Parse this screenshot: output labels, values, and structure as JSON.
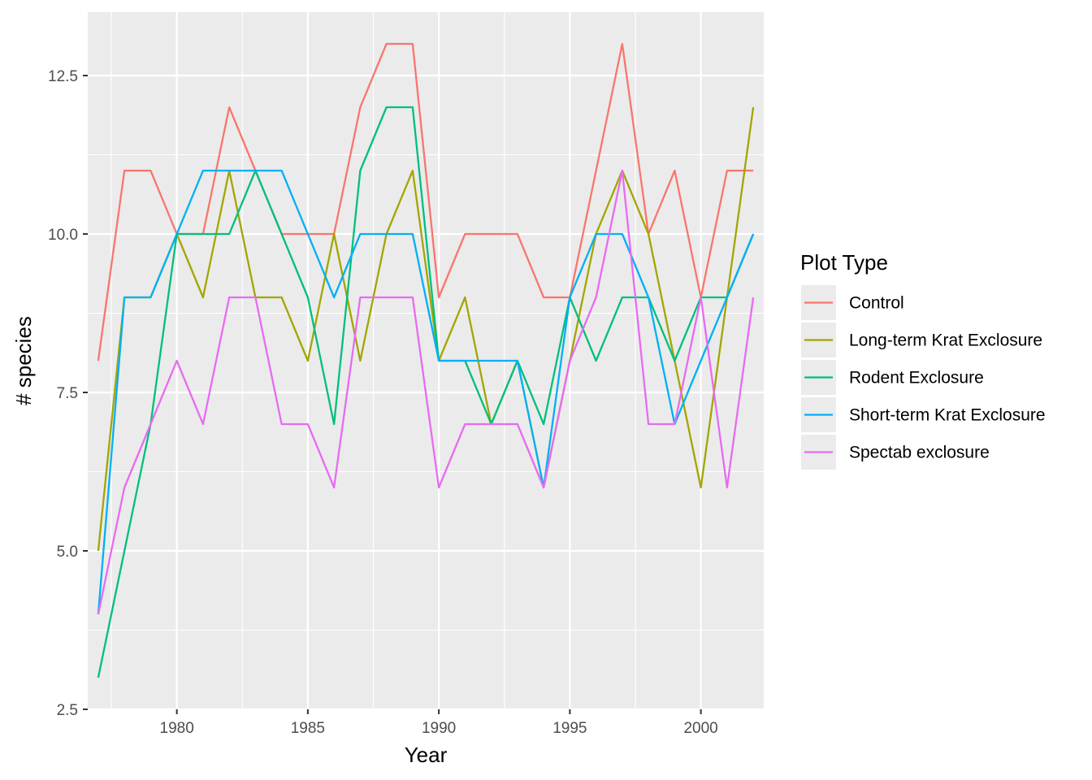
{
  "chart_data": {
    "type": "line",
    "title": "",
    "xlabel": "Year",
    "ylabel": "# species",
    "xlim": [
      1976.6,
      2002.4
    ],
    "ylim": [
      2.5,
      13.5
    ],
    "x_ticks": [
      1980,
      1985,
      1990,
      1995,
      2000
    ],
    "y_ticks": [
      2.5,
      5.0,
      7.5,
      10.0,
      12.5
    ],
    "x_tick_labels": [
      "1980",
      "1985",
      "1990",
      "1995",
      "2000"
    ],
    "y_tick_labels": [
      "2.5",
      "5.0",
      "7.5",
      "10.0",
      "12.5"
    ],
    "grid": true,
    "legend": {
      "title": "Plot Type",
      "position": "right"
    },
    "x": [
      1977,
      1978,
      1979,
      1980,
      1981,
      1982,
      1983,
      1984,
      1985,
      1986,
      1987,
      1988,
      1989,
      1990,
      1991,
      1992,
      1993,
      1994,
      1995,
      1996,
      1997,
      1998,
      1999,
      2000,
      2001,
      2002
    ],
    "series": [
      {
        "name": "Control",
        "color": "#F8766D",
        "values": [
          8,
          11,
          11,
          10,
          10,
          12,
          11,
          10,
          10,
          10,
          12,
          13,
          13,
          9,
          10,
          10,
          10,
          9,
          9,
          11,
          13,
          10,
          11,
          9,
          11,
          11
        ]
      },
      {
        "name": "Long-term Krat Exclosure",
        "color": "#A3A500",
        "values": [
          5,
          9,
          9,
          10,
          9,
          11,
          9,
          9,
          8,
          10,
          8,
          10,
          11,
          8,
          9,
          7,
          8,
          6,
          8,
          10,
          11,
          10,
          8,
          6,
          9,
          12
        ]
      },
      {
        "name": "Rodent Exclosure",
        "color": "#00BF7D",
        "values": [
          3,
          5,
          7,
          10,
          10,
          10,
          11,
          10,
          9,
          7,
          11,
          12,
          12,
          8,
          8,
          7,
          8,
          7,
          9,
          8,
          9,
          9,
          8,
          9,
          9,
          10
        ]
      },
      {
        "name": "Short-term Krat Exclosure",
        "color": "#00B0F6",
        "values": [
          4,
          9,
          9,
          10,
          11,
          11,
          11,
          11,
          10,
          9,
          10,
          10,
          10,
          8,
          8,
          8,
          8,
          6,
          9,
          10,
          10,
          9,
          7,
          8,
          9,
          10
        ]
      },
      {
        "name": "Spectab exclosure",
        "color": "#E76BF3",
        "values": [
          4,
          6,
          7,
          8,
          7,
          9,
          9,
          7,
          7,
          6,
          9,
          9,
          9,
          6,
          7,
          7,
          7,
          6,
          8,
          9,
          11,
          7,
          7,
          9,
          6,
          9
        ]
      }
    ]
  }
}
